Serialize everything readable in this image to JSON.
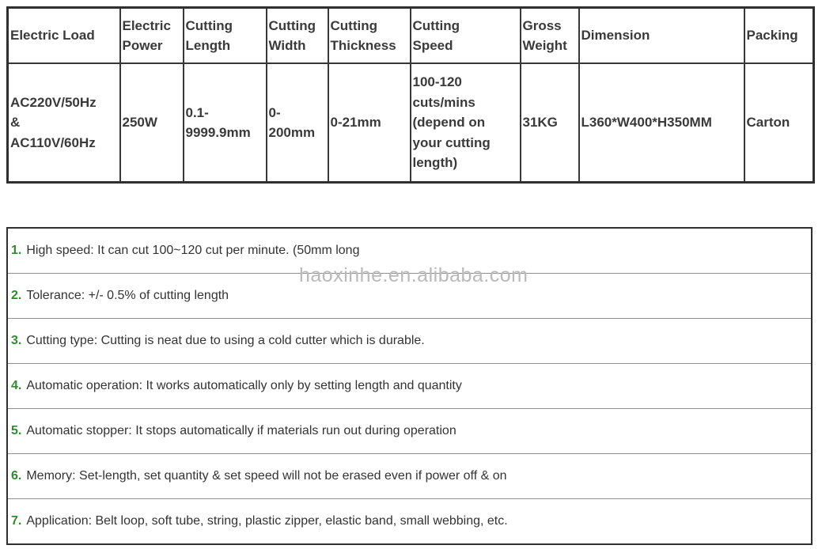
{
  "watermark": {
    "text": "haoxinhe.en.alibaba.com"
  },
  "spec": {
    "headers": [
      "Electric Load",
      "Electric\nPower",
      "Cutting\nLength",
      "Cutting\nWidth",
      "Cutting\nThickness",
      "Cutting\nSpeed",
      "Gross\nWeight",
      "Dimension",
      "Packing"
    ],
    "row": [
      "AC220V/50Hz\n&\nAC110V/60Hz",
      "250W",
      "0.1-\n9999.9mm",
      "0-\n200mm",
      "0-21mm",
      "100-120\ncuts/mins\n(depend on\nyour cutting\nlength)",
      "31KG",
      "L360*W400*H350MM",
      "Carton"
    ]
  },
  "features": [
    {
      "num": "1.",
      "text": "High speed: It can cut 100~120 cut per minute. (50mm long"
    },
    {
      "num": "2.",
      "text": "Tolerance: +/- 0.5% of cutting length"
    },
    {
      "num": "3.",
      "text": "Cutting type: Cutting is neat due to using a cold cutter which is durable."
    },
    {
      "num": "4.",
      "text": "Automatic operation: It works automatically only by setting length and quantity"
    },
    {
      "num": "5.",
      "text": "Automatic stopper: It stops automatically if materials run out during operation"
    },
    {
      "num": "6.",
      "text": "Memory: Set-length, set quantity & set speed will not be erased even if power off & on"
    },
    {
      "num": "7.",
      "text": "Application: Belt loop, soft tube, string, plastic zipper, elastic band, small webbing, etc."
    }
  ],
  "colors": {
    "accent_green": "#2e8b2e",
    "border_dark": "#2f2f2f",
    "cell_border": "#383838",
    "divider_gray": "#8f8f8f",
    "text": "#333333",
    "watermark_gray": "#b9b9b9"
  }
}
